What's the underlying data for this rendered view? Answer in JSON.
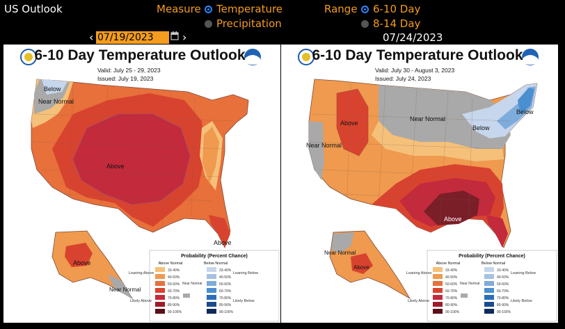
{
  "header": {
    "title": "US Outlook",
    "measure_label": "Measure",
    "measure_options": [
      "Temperature",
      "Precipitation"
    ],
    "measure_selected": "Temperature",
    "range_label": "Range",
    "range_options": [
      "6-10 Day",
      "8-14 Day"
    ],
    "range_selected": "6-10 Day",
    "date_input": "07/19/2023",
    "compare_date": "07/24/2023",
    "prev_arrow": "‹",
    "next_arrow": "›"
  },
  "maps": [
    {
      "title": "6-10 Day Temperature Outlook",
      "valid": "Valid:  July 25 - 29, 2023",
      "issued": "Issued:  July 19, 2023",
      "labels": [
        "Below",
        "Near Normal",
        "Above",
        "Above",
        "Above",
        "Near Normal"
      ],
      "legend": {
        "title": "Probability (Percent Chance)",
        "above_header": "Above Normal",
        "below_header": "Below Normal",
        "ranges": [
          "33-40%",
          "40-50%",
          "50-60%",
          "60-70%",
          "70-80%",
          "80-90%",
          "90-100%"
        ],
        "leaning_above": "Leaning Above",
        "likely_above": "Likely Above",
        "near_normal": "Near Normal",
        "leaning_below": "Leaning Below",
        "likely_below": "Likely Below"
      }
    },
    {
      "title": "6-10 Day Temperature Outlook",
      "valid": "Valid:  July 30 - August 3, 2023",
      "issued": "Issued:  July 24, 2023",
      "labels": [
        "Above",
        "Near Normal",
        "Near Normal",
        "Below",
        "Below",
        "Above",
        "Near Normal",
        "Above"
      ],
      "legend": {
        "title": "Probability (Percent Chance)",
        "above_header": "Above Normal",
        "below_header": "Below Normal",
        "ranges": [
          "33-40%",
          "40-50%",
          "50-60%",
          "60-70%",
          "70-80%",
          "80-90%",
          "90-100%"
        ],
        "leaning_above": "Leaning Above",
        "likely_above": "Likely Above",
        "near_normal": "Near Normal",
        "leaning_below": "Leaning Below",
        "likely_below": "Likely Below"
      }
    }
  ],
  "colors": {
    "above_scale": [
      "#f5c07a",
      "#ef9a4e",
      "#e8703a",
      "#d8432f",
      "#c32a3c",
      "#9e1b2a",
      "#5c0f18"
    ],
    "below_scale": [
      "#c6d6ec",
      "#a7c1e3",
      "#7eacdc",
      "#4b8fd0",
      "#2b6eb8",
      "#1a4b8e",
      "#0d2a5a"
    ],
    "near_normal": "#a9a9a9",
    "accent": "#f39c1f",
    "radio_on": "#2a86ff"
  }
}
